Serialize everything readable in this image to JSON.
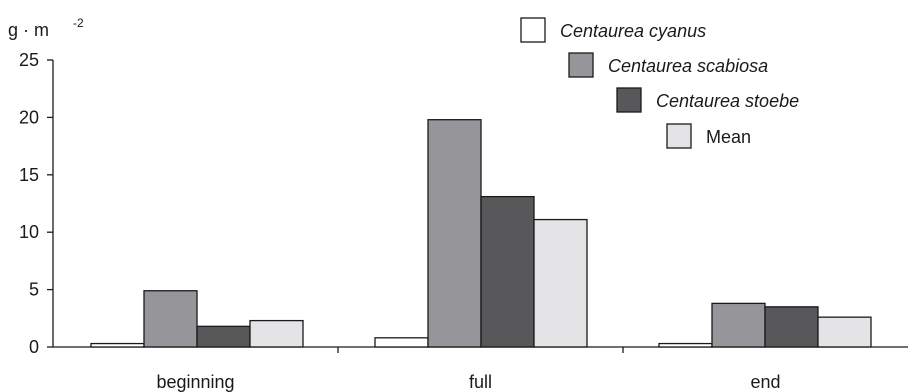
{
  "chart_data": {
    "type": "bar",
    "title": "",
    "ylabel": "g · m",
    "ylabel_exponent": "-2",
    "xlabel": "",
    "ylim": [
      0,
      25
    ],
    "yticks": [
      "0",
      "5",
      "10",
      "15",
      "20",
      "25"
    ],
    "categories": [
      "beginning",
      "full",
      "end"
    ],
    "series": [
      {
        "name": "Centaurea cyanus",
        "color": "#ffffff",
        "italic": true,
        "values": [
          0.3,
          0.8,
          0.3
        ]
      },
      {
        "name": "Centaurea scabiosa",
        "color": "#96969a",
        "italic": true,
        "values": [
          4.9,
          19.8,
          3.8
        ]
      },
      {
        "name": "Centaurea stoebe",
        "color": "#58585a",
        "italic": true,
        "values": [
          1.8,
          13.1,
          3.5
        ]
      },
      {
        "name": "Mean",
        "color": "#e4e4e6",
        "italic": false,
        "values": [
          2.3,
          11.1,
          2.6
        ]
      }
    ],
    "legend_position": "top-right",
    "grid": false
  }
}
